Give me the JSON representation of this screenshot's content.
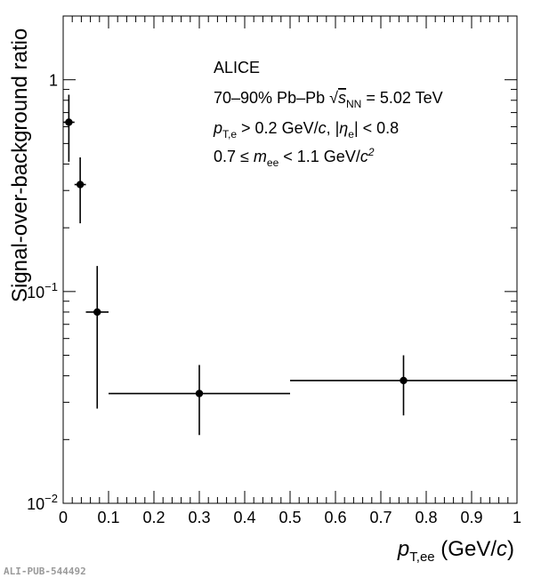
{
  "chart_data": {
    "type": "scatter",
    "ylabel": "Signal-over-background ratio",
    "xlabel": {
      "main": "p",
      "sub": "T,ee",
      "unit_pre": " (GeV/",
      "unit_it": "c",
      "unit_post": ")"
    },
    "xlim": [
      0,
      1
    ],
    "ylim": [
      0.01,
      2
    ],
    "yscale": "log",
    "x_ticks": [
      "0",
      "0.1",
      "0.2",
      "0.3",
      "0.4",
      "0.5",
      "0.6",
      "0.7",
      "0.8",
      "0.9",
      "1"
    ],
    "y_ticks": [
      {
        "value": 1,
        "base": "1",
        "exp": ""
      },
      {
        "value": 0.1,
        "base": "10",
        "exp": "−1"
      },
      {
        "value": 0.01,
        "base": "10",
        "exp": "−2"
      }
    ],
    "points": [
      {
        "x": 0.0125,
        "y": 0.63,
        "xerr": 0.0125,
        "ylo": 0.41,
        "yhi": 0.85
      },
      {
        "x": 0.0375,
        "y": 0.32,
        "xerr": 0.0125,
        "ylo": 0.21,
        "yhi": 0.43
      },
      {
        "x": 0.075,
        "y": 0.08,
        "xerr": 0.025,
        "ylo": 0.028,
        "yhi": 0.132
      },
      {
        "x": 0.3,
        "y": 0.033,
        "xerr": 0.2,
        "ylo": 0.021,
        "yhi": 0.045
      },
      {
        "x": 0.75,
        "y": 0.038,
        "xerr": 0.25,
        "ylo": 0.026,
        "yhi": 0.05
      }
    ],
    "annotations": {
      "experiment": "ALICE",
      "line2_pre": "70–90% Pb–Pb ",
      "line2_sym": "s",
      "line2_sub": "NN",
      "line2_post": " = 5.02 TeV",
      "line3_p": "p",
      "line3_psub": "T,e",
      "line3_mid": " > 0.2 GeV/",
      "line3_c": "c",
      "line3_sep": ", |",
      "line3_eta": "η",
      "line3_etasub": "e",
      "line3_end": "| < 0.8",
      "line4_pre": "0.7 ≤ ",
      "line4_m": "m",
      "line4_msub": "ee",
      "line4_mid": " < 1.1 GeV/",
      "line4_c": "c",
      "line4_exp": "2"
    }
  },
  "footer": {
    "pub_id": "ALI-PUB-544492"
  }
}
